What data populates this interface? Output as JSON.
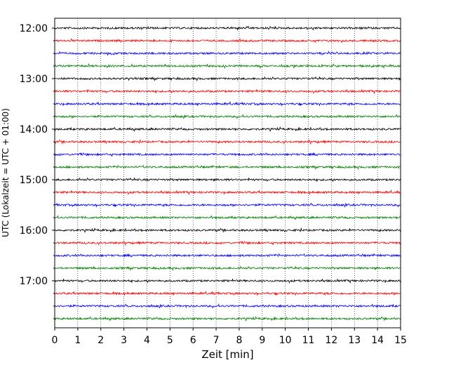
{
  "chart_data": {
    "type": "line",
    "title": "",
    "xlabel": "Zeit  [min]",
    "ylabel": "UTC (Lokalzeit = UTC + 01:00)",
    "xlim": [
      0,
      15
    ],
    "x_ticks": [
      "0",
      "1",
      "2",
      "3",
      "4",
      "5",
      "6",
      "7",
      "8",
      "9",
      "10",
      "11",
      "12",
      "13",
      "14",
      "15"
    ],
    "y_ticks": [
      "12:00",
      "13:00",
      "14:00",
      "15:00",
      "16:00",
      "17:00"
    ],
    "grid": "vertical-dotted",
    "trace_colors": [
      "#000000",
      "#ff0000",
      "#0000ff",
      "#008000"
    ],
    "series": [
      {
        "start": "12:00"
      },
      {
        "start": "12:15"
      },
      {
        "start": "12:30"
      },
      {
        "start": "12:45"
      },
      {
        "start": "13:00"
      },
      {
        "start": "13:15"
      },
      {
        "start": "13:30"
      },
      {
        "start": "13:45"
      },
      {
        "start": "14:00"
      },
      {
        "start": "14:15"
      },
      {
        "start": "14:30"
      },
      {
        "start": "14:45"
      },
      {
        "start": "15:00"
      },
      {
        "start": "15:15"
      },
      {
        "start": "15:30"
      },
      {
        "start": "15:45"
      },
      {
        "start": "16:00"
      },
      {
        "start": "16:15"
      },
      {
        "start": "16:30"
      },
      {
        "start": "16:45"
      },
      {
        "start": "17:00"
      },
      {
        "start": "17:15"
      },
      {
        "start": "17:30"
      },
      {
        "start": "17:45"
      }
    ]
  }
}
